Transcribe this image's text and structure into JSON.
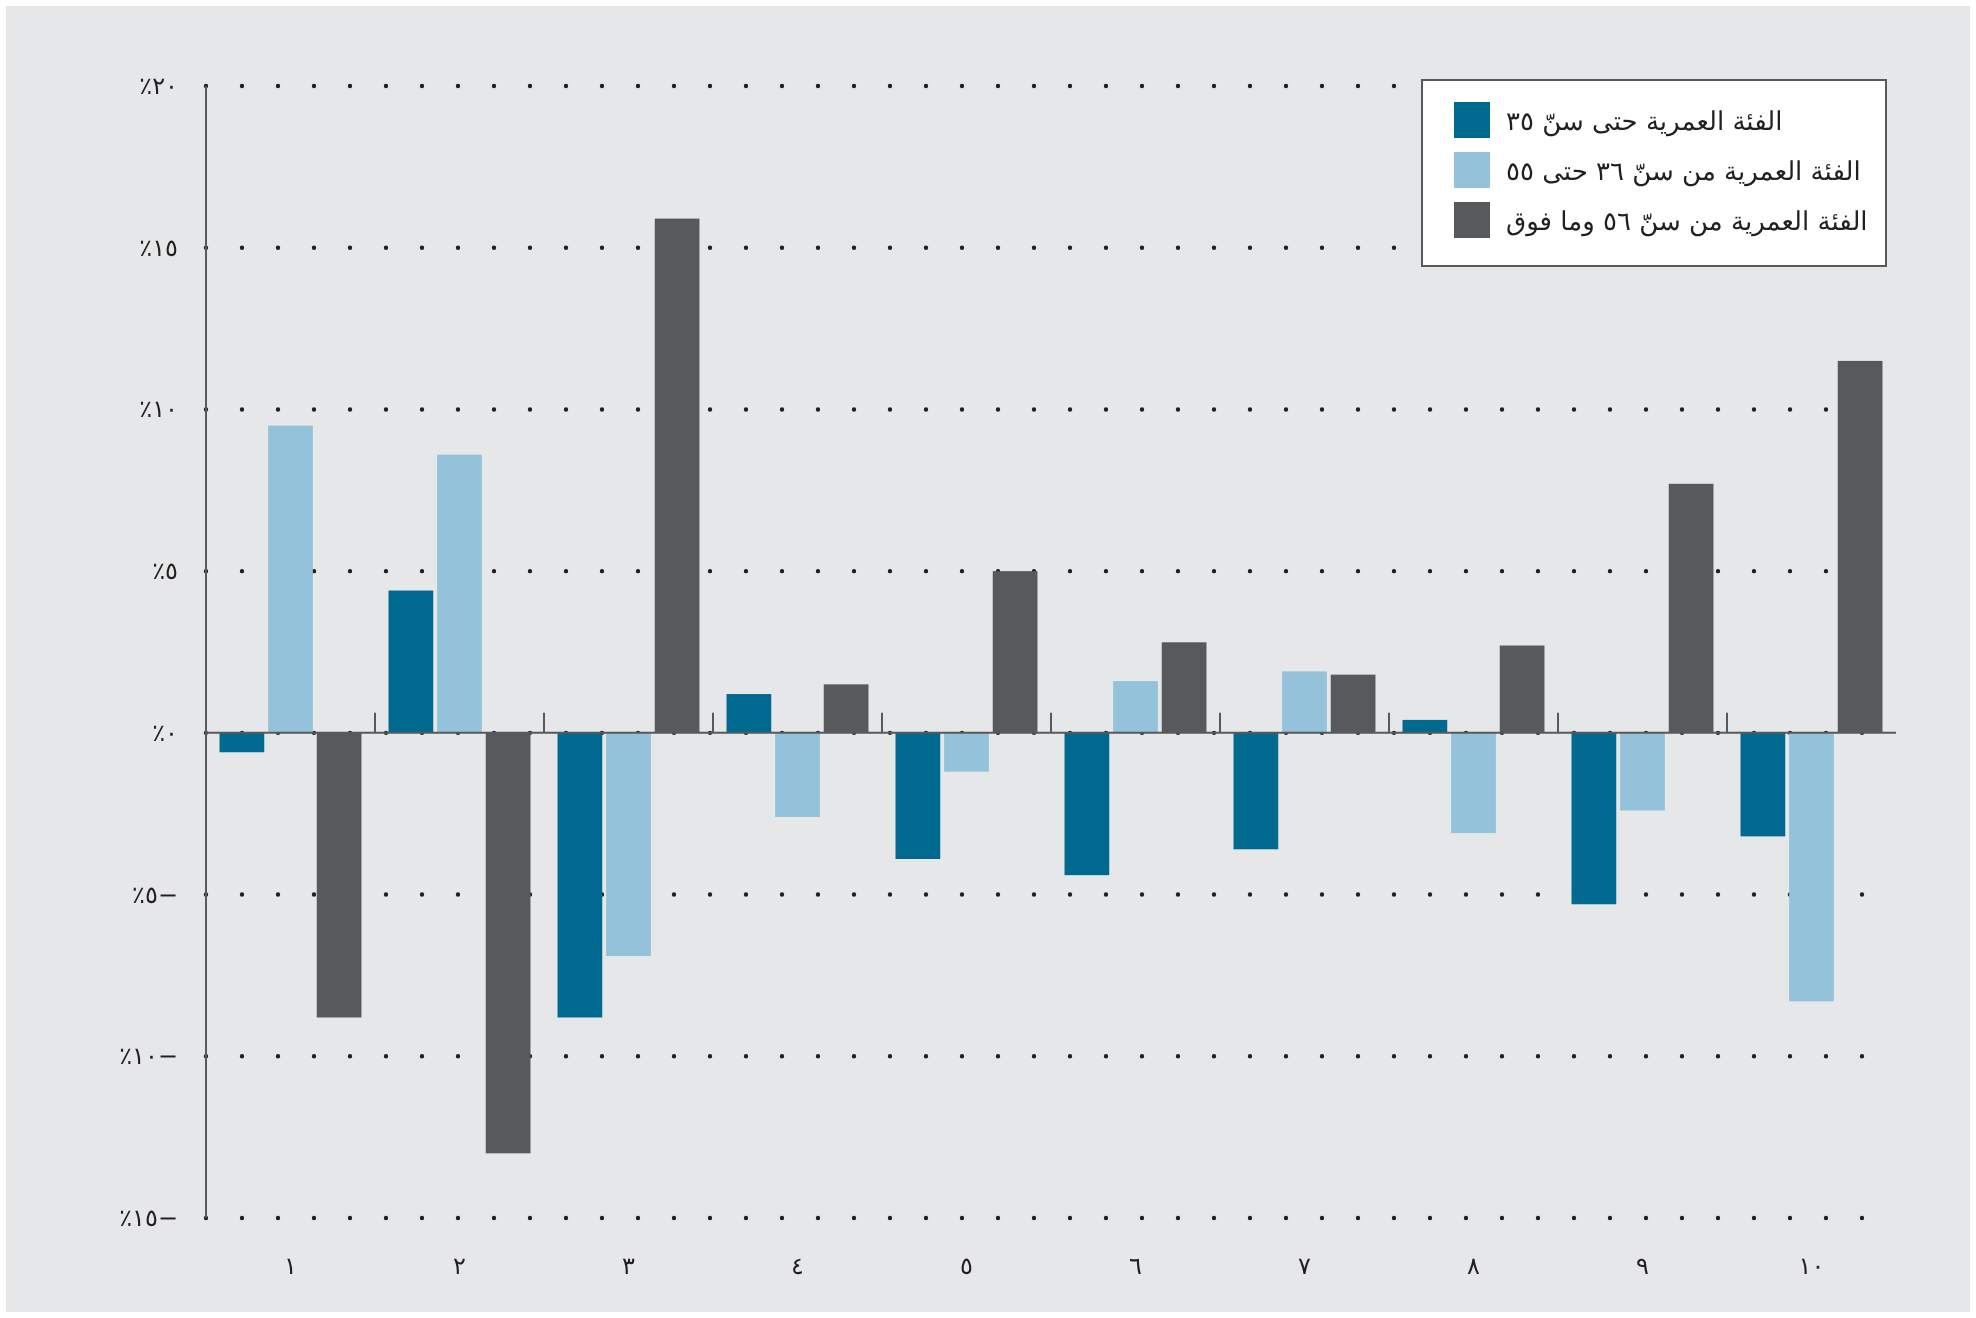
{
  "chart_data": {
    "type": "bar",
    "categories": [
      "١",
      "٢",
      "٣",
      "٤",
      "٥",
      "٦",
      "٧",
      "٨",
      "٩",
      "١٠"
    ],
    "series": [
      {
        "name": "الفئة العمرية حتى سنّ ٣٥",
        "color": "#006990",
        "values": [
          -0.6,
          4.4,
          -8.8,
          1.2,
          -3.9,
          -4.4,
          -3.6,
          0.4,
          -5.3,
          -3.2
        ]
      },
      {
        "name": "الفئة العمرية من سنّ ٣٦ حتى ٥٥",
        "color": "#93c2da",
        "values": [
          9.5,
          8.6,
          -6.9,
          -2.6,
          -1.2,
          1.6,
          1.9,
          -3.1,
          -2.4,
          -8.3
        ]
      },
      {
        "name": "الفئة العمرية من سنّ ٥٦ وما فوق",
        "color": "#58595b",
        "values": [
          -8.8,
          -13.0,
          15.9,
          1.5,
          5.0,
          2.8,
          1.8,
          2.7,
          7.7,
          11.5
        ]
      }
    ],
    "ylim": [
      -15,
      20
    ],
    "yticks": [
      {
        "value": -15,
        "label": "٪١٥−"
      },
      {
        "value": -10,
        "label": "٪١٠−"
      },
      {
        "value": -5,
        "label": "٪٥−"
      },
      {
        "value": 0,
        "label": "٪٠"
      },
      {
        "value": 5,
        "label": "٪٥"
      },
      {
        "value": 10,
        "label": "٪١٠"
      },
      {
        "value": 15,
        "label": "٪١٥"
      },
      {
        "value": 20,
        "label": "٪٢٠"
      }
    ],
    "grid": "y",
    "legend": "top right"
  }
}
